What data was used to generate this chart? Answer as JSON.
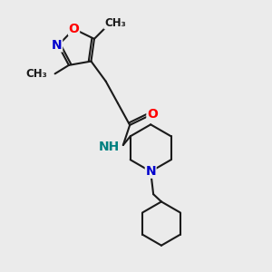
{
  "bg_color": "#ebebeb",
  "bond_color": "#1a1a1a",
  "bond_width": 1.5,
  "atom_colors": {
    "O": "#ff0000",
    "N": "#0000cd",
    "NH": "#008080",
    "C": "#1a1a1a"
  },
  "font_size_atom": 10,
  "font_size_methyl": 8.5
}
